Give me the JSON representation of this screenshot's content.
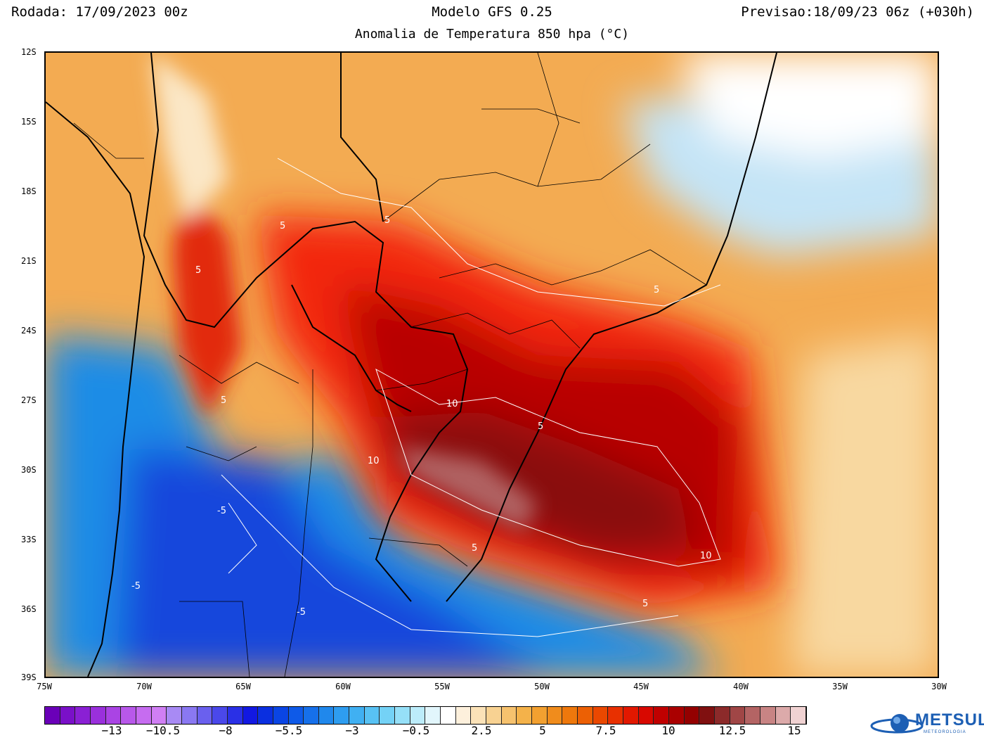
{
  "header": {
    "left": "Rodada: 17/09/2023 00z",
    "center": "Modelo GFS 0.25",
    "right": "Previsao:18/09/23 06z (+030h)",
    "subtitle": "Anomalia de Temperatura 850 hpa (°C)"
  },
  "map": {
    "lat_labels": [
      "12S",
      "15S",
      "18S",
      "21S",
      "24S",
      "27S",
      "30S",
      "33S",
      "36S",
      "39S"
    ],
    "lon_labels": [
      "75W",
      "70W",
      "65W",
      "60W",
      "55W",
      "50W",
      "45W",
      "40W",
      "35W",
      "30W"
    ],
    "contour_labels": [
      "5",
      "5",
      "5",
      "5",
      "10",
      "10",
      "10",
      "5",
      "-5",
      "-5",
      "-5",
      "5",
      "5",
      "5"
    ]
  },
  "colorbar": {
    "colors": [
      "#6a00b8",
      "#7a10c8",
      "#8a20d4",
      "#9a30dc",
      "#aa44e4",
      "#b858ea",
      "#c66cf0",
      "#d07ff4",
      "#a88af4",
      "#8a78f2",
      "#6a60ee",
      "#4a48ea",
      "#2a30e6",
      "#1218e2",
      "#0a2fe0",
      "#0a45e4",
      "#0e5ae8",
      "#1670ea",
      "#2088ec",
      "#2e9df0",
      "#40b0f2",
      "#58c2f4",
      "#74d2f6",
      "#96e0f8",
      "#bcecfa",
      "#e2f6fc",
      "#ffffff",
      "#fdf0dc",
      "#fbe2b8",
      "#f8d292",
      "#f6c26e",
      "#f4b24a",
      "#f2a030",
      "#f08c1c",
      "#ee780c",
      "#ec6004",
      "#ea4800",
      "#e83000",
      "#e21800",
      "#d80800",
      "#c00000",
      "#aa0000",
      "#940000",
      "#801010",
      "#8c2a2a",
      "#a04646",
      "#b46464",
      "#c88484",
      "#dcaaaa",
      "#f0d2d2"
    ],
    "labels": [
      "−13",
      "−10.5",
      "−8",
      "−5.5",
      "−3",
      "−0.5",
      "2.5",
      "5",
      "7.5",
      "10",
      "12.5",
      "15"
    ]
  },
  "logo": {
    "text": "METSUL",
    "subtext": "METEOROLOGIA"
  }
}
